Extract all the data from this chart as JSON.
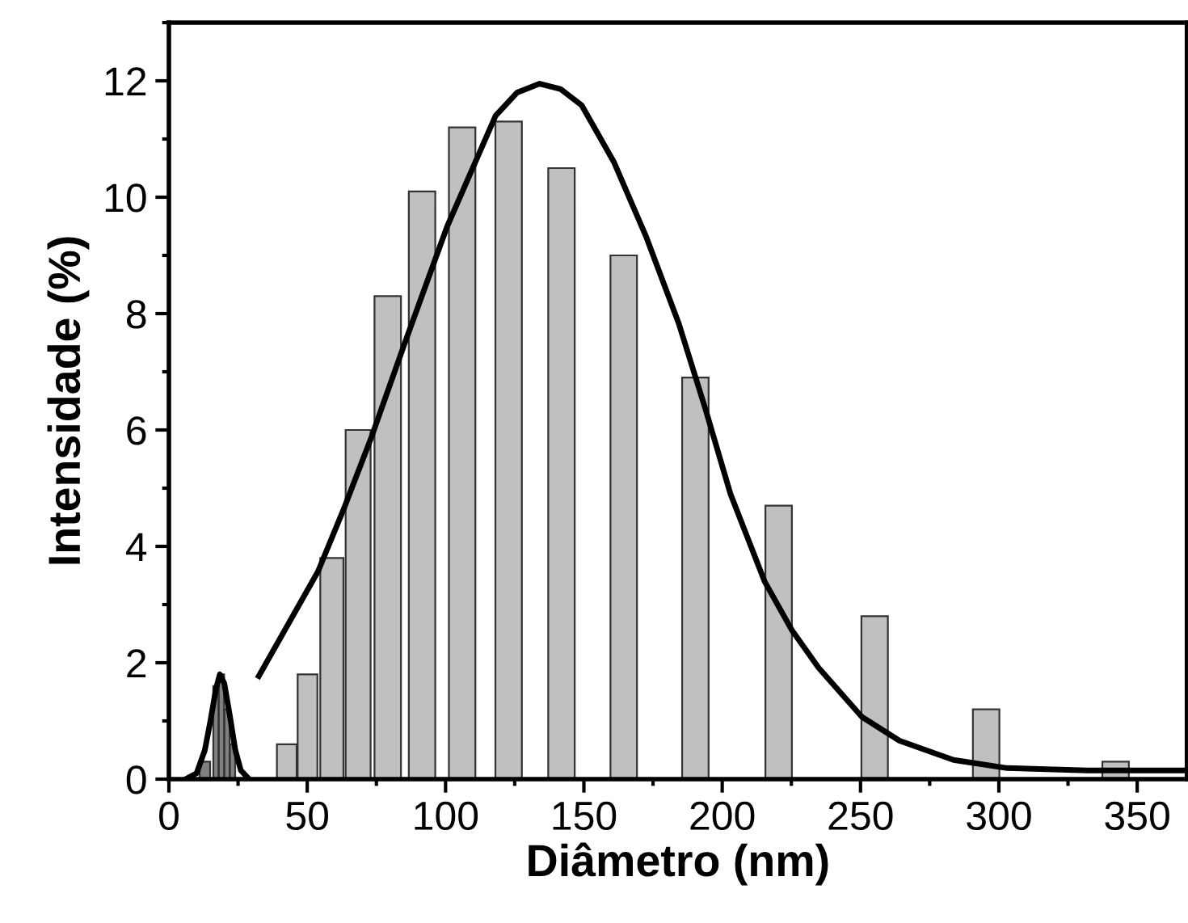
{
  "chart_data": {
    "type": "bar",
    "xlabel": "Diâmetro (nm)",
    "ylabel": "Intensidade (%)",
    "xlim": [
      0,
      368
    ],
    "ylim": [
      0,
      13
    ],
    "xticks": [
      0,
      50,
      100,
      150,
      200,
      250,
      300,
      350
    ],
    "yticks": [
      0,
      2,
      4,
      6,
      8,
      10,
      12
    ],
    "grid": false,
    "series": [
      {
        "color": "#c0c0c0",
        "x": [
          42.6,
          50.1,
          58.9,
          68.4,
          79.1,
          91.5,
          106,
          122.8,
          141.9,
          164.4,
          190.3,
          220.4,
          255.1,
          295.4,
          342.2
        ],
        "values": [
          0.6,
          1.8,
          3.8,
          6.0,
          8.3,
          10.1,
          11.2,
          11.3,
          10.5,
          9.0,
          6.9,
          4.7,
          2.8,
          1.2,
          0.3
        ]
      },
      {
        "color": "#808080",
        "x": [
          13,
          17,
          19,
          21,
          23
        ],
        "values": [
          0.3,
          1.6,
          1.8,
          1.2,
          0.6
        ]
      },
      {
        "type": "line",
        "color": "#000000",
        "x": [
          6,
          10,
          13,
          15,
          17,
          18.4,
          20,
          22,
          24,
          26,
          29
        ],
        "values": [
          0,
          0.1,
          0.5,
          1.0,
          1.55,
          1.8,
          1.65,
          1.1,
          0.5,
          0.15,
          0
        ]
      },
      {
        "type": "line",
        "color": "#000000",
        "x": [
          32.5,
          53.9,
          63.6,
          73.3,
          85,
          100.6,
          118.1,
          125.9,
          134,
          141.5,
          149.2,
          160.9,
          172.6,
          184.3,
          194,
          203,
          215.4,
          225.2,
          234.9,
          250.5,
          264.1,
          283.6,
          303,
          332,
          368
        ],
        "values": [
          1.77,
          3.57,
          4.69,
          5.89,
          7.46,
          9.5,
          11.4,
          11.8,
          11.95,
          11.86,
          11.58,
          10.6,
          9.31,
          7.83,
          6.35,
          4.9,
          3.39,
          2.56,
          1.91,
          1.07,
          0.66,
          0.33,
          0.19,
          0.15,
          0.15
        ]
      }
    ]
  }
}
